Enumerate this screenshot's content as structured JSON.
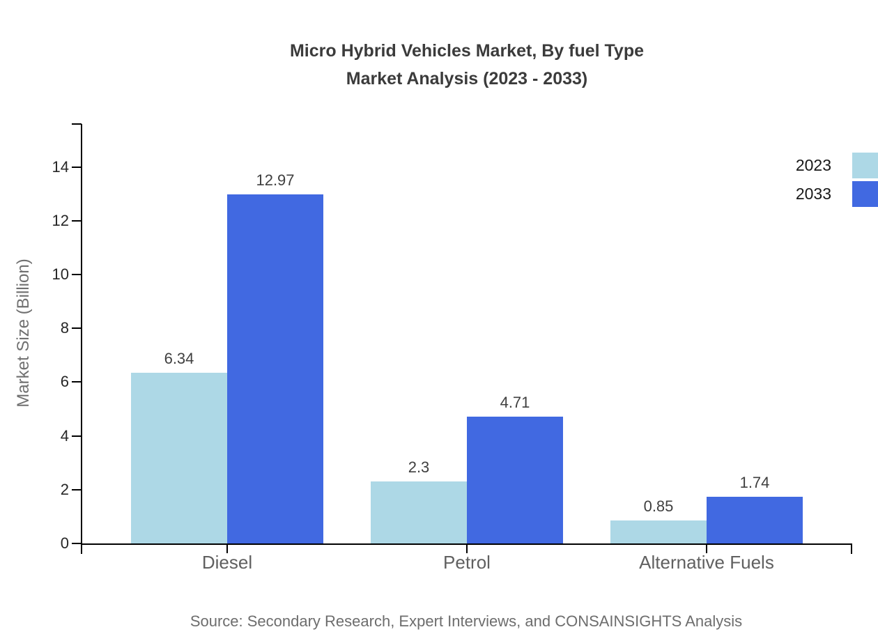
{
  "title": {
    "line1": "Micro Hybrid Vehicles Market, By fuel Type",
    "line2": "Market Analysis (2023 - 2033)"
  },
  "chart_data": {
    "type": "bar",
    "categories": [
      "Diesel",
      "Petrol",
      "Alternative Fuels"
    ],
    "series": [
      {
        "name": "2023",
        "color": "#ADD8E6",
        "values": [
          6.34,
          2.3,
          0.85
        ]
      },
      {
        "name": "2033",
        "color": "#4169E1",
        "values": [
          12.97,
          4.71,
          1.74
        ]
      }
    ],
    "title": "Micro Hybrid Vehicles Market, By fuel Type Market Analysis (2023 - 2033)",
    "xlabel": "",
    "ylabel": "Market Size (Billion)",
    "yticks": [
      0,
      2,
      4,
      6,
      8,
      10,
      12,
      14
    ],
    "ylim": [
      0,
      15.6
    ],
    "grid": false,
    "legend_position": "top-right",
    "value_labels": true
  },
  "footer": {
    "source": "Source: Secondary Research, Expert Interviews, and CONSAINSIGHTS Analysis"
  },
  "colors": {
    "series_2023": "#ADD8E6",
    "series_2033": "#4169E1",
    "axis": "#000000",
    "title_text": "#3b3b3b",
    "tick_label": "#262626",
    "category_label": "#606060",
    "value_label": "#3f3f3f",
    "ylabel_text": "#707070",
    "footer_text": "#6d6d6d",
    "background": "#ffffff"
  }
}
